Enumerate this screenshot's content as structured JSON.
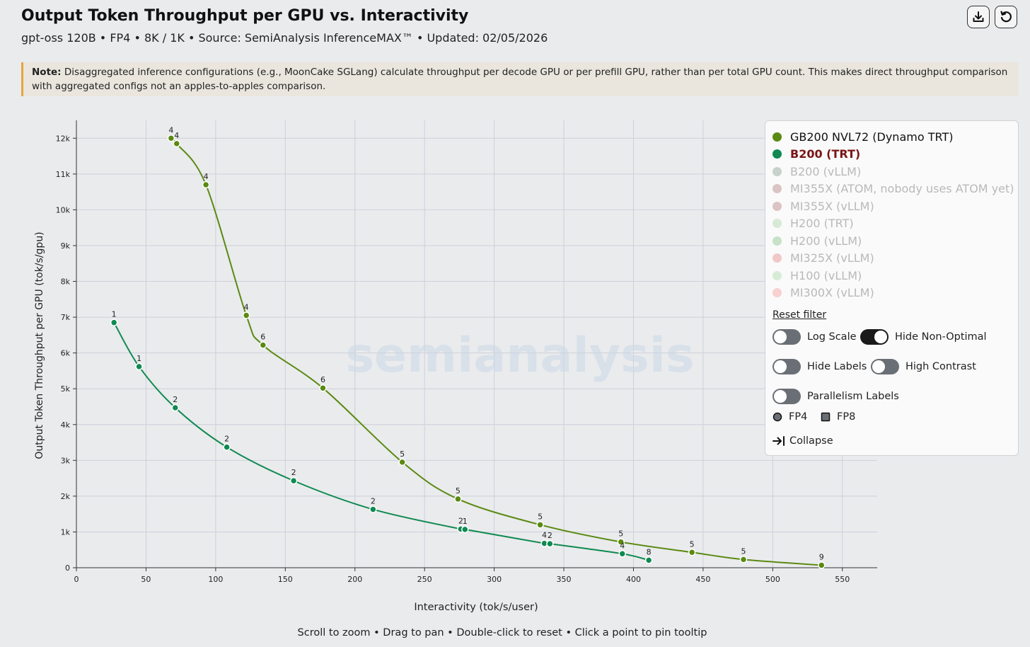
{
  "header": {
    "title": "Output Token Throughput per GPU vs. Interactivity",
    "subtitle": "gpt-oss 120B • FP4 • 8K / 1K • Source: SemiAnalysis InferenceMAX™ • Updated: 02/05/2026",
    "download_icon": "download-icon",
    "reset_icon": "refresh-icon"
  },
  "note": {
    "label": "Note:",
    "text": "Disaggregated inference configurations (e.g., MoonCake SGLang) calculate throughput per decode GPU or per prefill GPU, rather than per total GPU count. This makes direct throughput comparison with aggregated configs not an apples-to-apples comparison."
  },
  "watermark": "semianalysis",
  "chart_data": {
    "type": "line",
    "title": "Output Token Throughput per GPU vs. Interactivity",
    "xlabel": "Interactivity (tok/s/user)",
    "ylabel": "Output Token Throughput per GPU (tok/s/gpu)",
    "xlim": [
      0,
      575
    ],
    "ylim": [
      0,
      12500
    ],
    "x_ticks": [
      0,
      50,
      100,
      150,
      200,
      250,
      300,
      350,
      400,
      450,
      500,
      550
    ],
    "y_ticks": [
      0,
      1000,
      2000,
      3000,
      4000,
      5000,
      6000,
      7000,
      8000,
      9000,
      10000,
      11000,
      12000
    ],
    "y_tick_labels": [
      "0",
      "1k",
      "2k",
      "3k",
      "4k",
      "5k",
      "6k",
      "7k",
      "8k",
      "9k",
      "10k",
      "11k",
      "12k"
    ],
    "grid": true,
    "legend_position": "right",
    "series": [
      {
        "name": "GB200 NVL72 (Dynamo TRT)",
        "color": "#5a8a12",
        "points": [
          {
            "x": 68,
            "y": 12000,
            "label": "4"
          },
          {
            "x": 72,
            "y": 11850,
            "label": "4"
          },
          {
            "x": 93,
            "y": 10700,
            "label": "4"
          },
          {
            "x": 122,
            "y": 7050,
            "label": "4"
          },
          {
            "x": 134,
            "y": 6220,
            "label": "6"
          },
          {
            "x": 177,
            "y": 5020,
            "label": "6"
          },
          {
            "x": 234,
            "y": 2950,
            "label": "5"
          },
          {
            "x": 274,
            "y": 1920,
            "label": "5"
          },
          {
            "x": 333,
            "y": 1200,
            "label": "5"
          },
          {
            "x": 391,
            "y": 720,
            "label": "5"
          },
          {
            "x": 442,
            "y": 430,
            "label": "5"
          },
          {
            "x": 479,
            "y": 230,
            "label": "5"
          },
          {
            "x": 535,
            "y": 70,
            "label": "9"
          }
        ]
      },
      {
        "name": "B200 (TRT)",
        "color": "#0f8a52",
        "points": [
          {
            "x": 27,
            "y": 6850,
            "label": "1"
          },
          {
            "x": 45,
            "y": 5620,
            "label": "1"
          },
          {
            "x": 71,
            "y": 4470,
            "label": "2"
          },
          {
            "x": 108,
            "y": 3370,
            "label": "2"
          },
          {
            "x": 156,
            "y": 2430,
            "label": "2"
          },
          {
            "x": 213,
            "y": 1630,
            "label": "2"
          },
          {
            "x": 276,
            "y": 1080,
            "label": "2"
          },
          {
            "x": 279,
            "y": 1070,
            "label": "1"
          },
          {
            "x": 336,
            "y": 680,
            "label": "4"
          },
          {
            "x": 340,
            "y": 670,
            "label": "2"
          },
          {
            "x": 392,
            "y": 390,
            "label": "4"
          },
          {
            "x": 411,
            "y": 210,
            "label": "8"
          }
        ]
      }
    ]
  },
  "legend": {
    "items": [
      {
        "name": "GB200 NVL72 (Dynamo TRT)",
        "color": "#5a8a12",
        "text_color": "#111111",
        "active": true
      },
      {
        "name": "B200 (TRT)",
        "color": "#0f8a52",
        "text_color": "#7a1515",
        "active": true
      },
      {
        "name": "B200 (vLLM)",
        "color": "#c8d2cc",
        "text_color": "#b9b9b9",
        "active": false
      },
      {
        "name": "MI355X (ATOM, nobody uses ATOM yet)",
        "color": "#dcc4c4",
        "text_color": "#b9b9b9",
        "active": false
      },
      {
        "name": "MI355X (vLLM)",
        "color": "#dcc4c4",
        "text_color": "#b9b9b9",
        "active": false
      },
      {
        "name": "H200 (TRT)",
        "color": "#d6ead6",
        "text_color": "#b9b9b9",
        "active": false
      },
      {
        "name": "H200 (vLLM)",
        "color": "#c7e2c7",
        "text_color": "#b9b9b9",
        "active": false
      },
      {
        "name": "MI325X (vLLM)",
        "color": "#f0c8c8",
        "text_color": "#b9b9b9",
        "active": false
      },
      {
        "name": "H100 (vLLM)",
        "color": "#d6ecd6",
        "text_color": "#b9b9b9",
        "active": false
      },
      {
        "name": "MI300X (vLLM)",
        "color": "#f8d0d0",
        "text_color": "#b9b9b9",
        "active": false
      }
    ],
    "reset_label": "Reset filter",
    "toggles": {
      "log_scale": {
        "label": "Log Scale",
        "on": false
      },
      "hide_non_optimal": {
        "label": "Hide Non-Optimal",
        "on": true
      },
      "hide_labels": {
        "label": "Hide Labels",
        "on": false
      },
      "high_contrast": {
        "label": "High Contrast",
        "on": false
      },
      "parallelism_labels": {
        "label": "Parallelism Labels",
        "on": false
      }
    },
    "formats": {
      "fp4": {
        "label": "FP4",
        "icon": "circle-icon"
      },
      "fp8": {
        "label": "FP8",
        "icon": "square-icon"
      }
    },
    "collapse_label": "Collapse",
    "collapse_icon": "collapse-arrow-icon"
  },
  "footer": "Scroll to zoom • Drag to pan • Double-click to reset • Click a point to pin tooltip"
}
